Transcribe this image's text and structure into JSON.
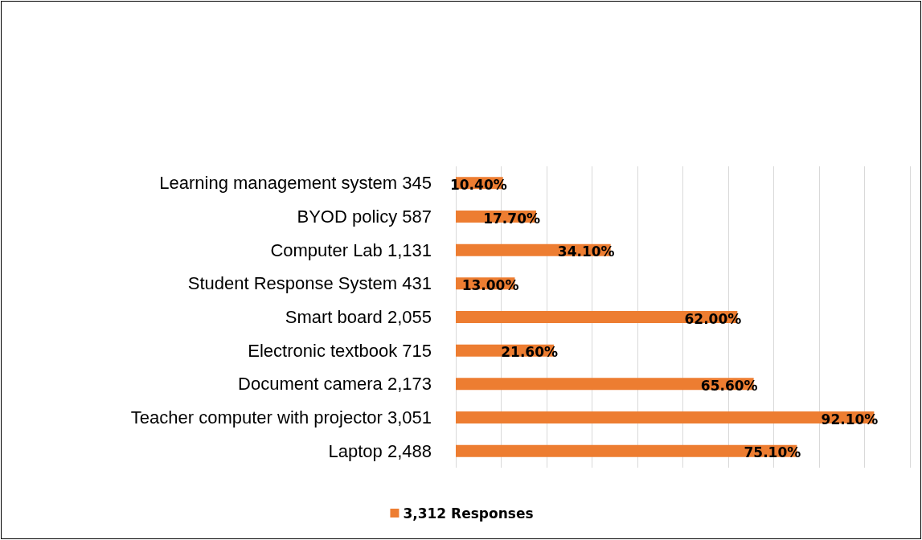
{
  "chart_data": {
    "type": "bar",
    "orientation": "horizontal",
    "categories": [
      "Learning management system 345",
      "BYOD policy 587",
      "Computer Lab 1,131",
      "Student Response System 431",
      "Smart board 2,055",
      "Electronic textbook 715",
      "Document camera 2,173",
      "Teacher computer with projector 3,051",
      "Laptop 2,488"
    ],
    "series": [
      {
        "name": "3,312 Responses",
        "color": "#ed7d31",
        "values": [
          10.4,
          17.7,
          34.1,
          13.0,
          62.0,
          21.6,
          65.6,
          92.1,
          75.1
        ],
        "value_labels": [
          "10.40%",
          "17.70%",
          "34.10%",
          "13.00%",
          "62.00%",
          "21.60%",
          "65.60%",
          "92.10%",
          "75.10%"
        ]
      }
    ],
    "xlim": [
      0,
      100
    ],
    "xticks": [
      {
        "value": 0,
        "label": null
      },
      {
        "value": 10,
        "label": null
      },
      {
        "value": 20,
        "label": null
      },
      {
        "value": 30,
        "label": null
      },
      {
        "value": 40,
        "label": null
      },
      {
        "value": 50,
        "label": null
      },
      {
        "value": 60,
        "label": null
      },
      {
        "value": 70,
        "label": null
      },
      {
        "value": 80,
        "label": null
      },
      {
        "value": 90,
        "label": null
      },
      {
        "value": 100,
        "label": null
      }
    ],
    "tick_labels": "y",
    "grid": "x",
    "legend": "bottom"
  }
}
